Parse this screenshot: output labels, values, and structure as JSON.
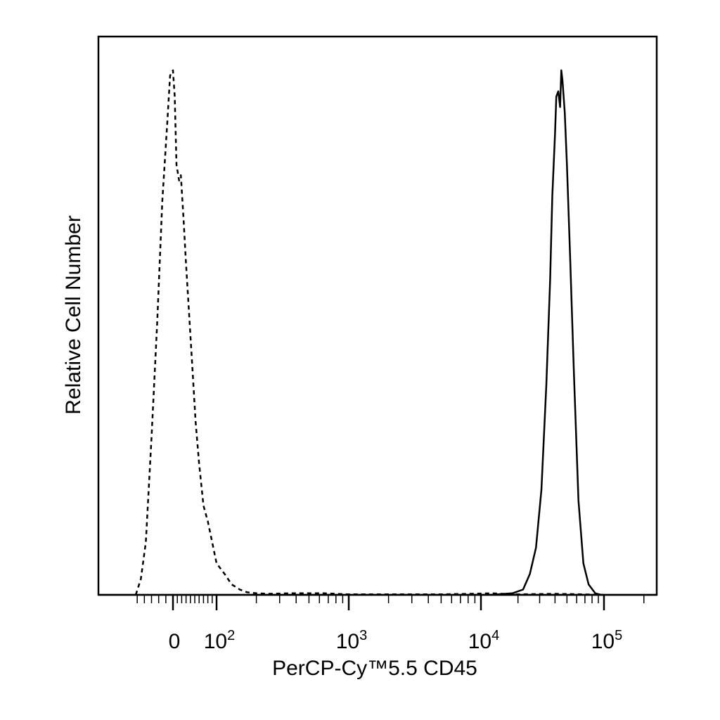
{
  "chart_data": {
    "type": "line",
    "title": "",
    "xlabel": "PerCP-Cy™5.5 CD45",
    "ylabel": "Relative Cell Number",
    "x_scale": "biexponential",
    "xlim": [
      -60,
      250000
    ],
    "ylim": [
      0,
      100
    ],
    "ytick_labels": [],
    "xtick_labels": [
      {
        "value": 0,
        "base": "0",
        "exp": ""
      },
      {
        "value": 100,
        "base": "10",
        "exp": "2"
      },
      {
        "value": 1000,
        "base": "10",
        "exp": "3"
      },
      {
        "value": 10000,
        "base": "10",
        "exp": "4"
      },
      {
        "value": 100000,
        "base": "10",
        "exp": "5"
      }
    ],
    "grid": false,
    "legend": "none",
    "series": [
      {
        "style": "dashed",
        "color": "#000000",
        "x": [
          -52,
          -45,
          -38,
          -30,
          -22,
          -15,
          -8,
          -4,
          0,
          4,
          8,
          14,
          18,
          24,
          30,
          36,
          44,
          52,
          60,
          70,
          80,
          90,
          100,
          115,
          130,
          150,
          170,
          200,
          250,
          350,
          500,
          650,
          800,
          1000,
          1500,
          2500,
          5000,
          8000,
          12000,
          20000,
          40000,
          70000,
          100000
        ],
        "y": [
          0,
          3,
          10,
          30,
          52,
          75,
          90,
          99,
          100,
          95,
          82,
          79,
          80,
          72,
          63,
          55,
          44,
          33,
          25,
          17,
          14,
          10,
          6,
          4,
          2,
          1,
          0.5,
          0.3,
          0.2,
          0.3,
          0.3,
          0.3,
          0.2,
          0.1,
          0.1,
          0.1,
          0.1,
          0.2,
          0.3,
          0.1,
          0.2,
          0.1,
          0
        ]
      },
      {
        "style": "solid",
        "color": "#000000",
        "x": [
          12000,
          18000,
          22000,
          25000,
          28000,
          31000,
          34000,
          36500,
          38000,
          40000,
          41000,
          42500,
          44000,
          45000,
          46000,
          48000,
          50000,
          53000,
          57000,
          62000,
          68000,
          75000,
          85000,
          95000
        ],
        "y": [
          0,
          0.3,
          1,
          4,
          9,
          20,
          40,
          60,
          76,
          88,
          95,
          96,
          93,
          100,
          98,
          92,
          82,
          65,
          42,
          18,
          6,
          2,
          0.3,
          0
        ]
      }
    ]
  }
}
